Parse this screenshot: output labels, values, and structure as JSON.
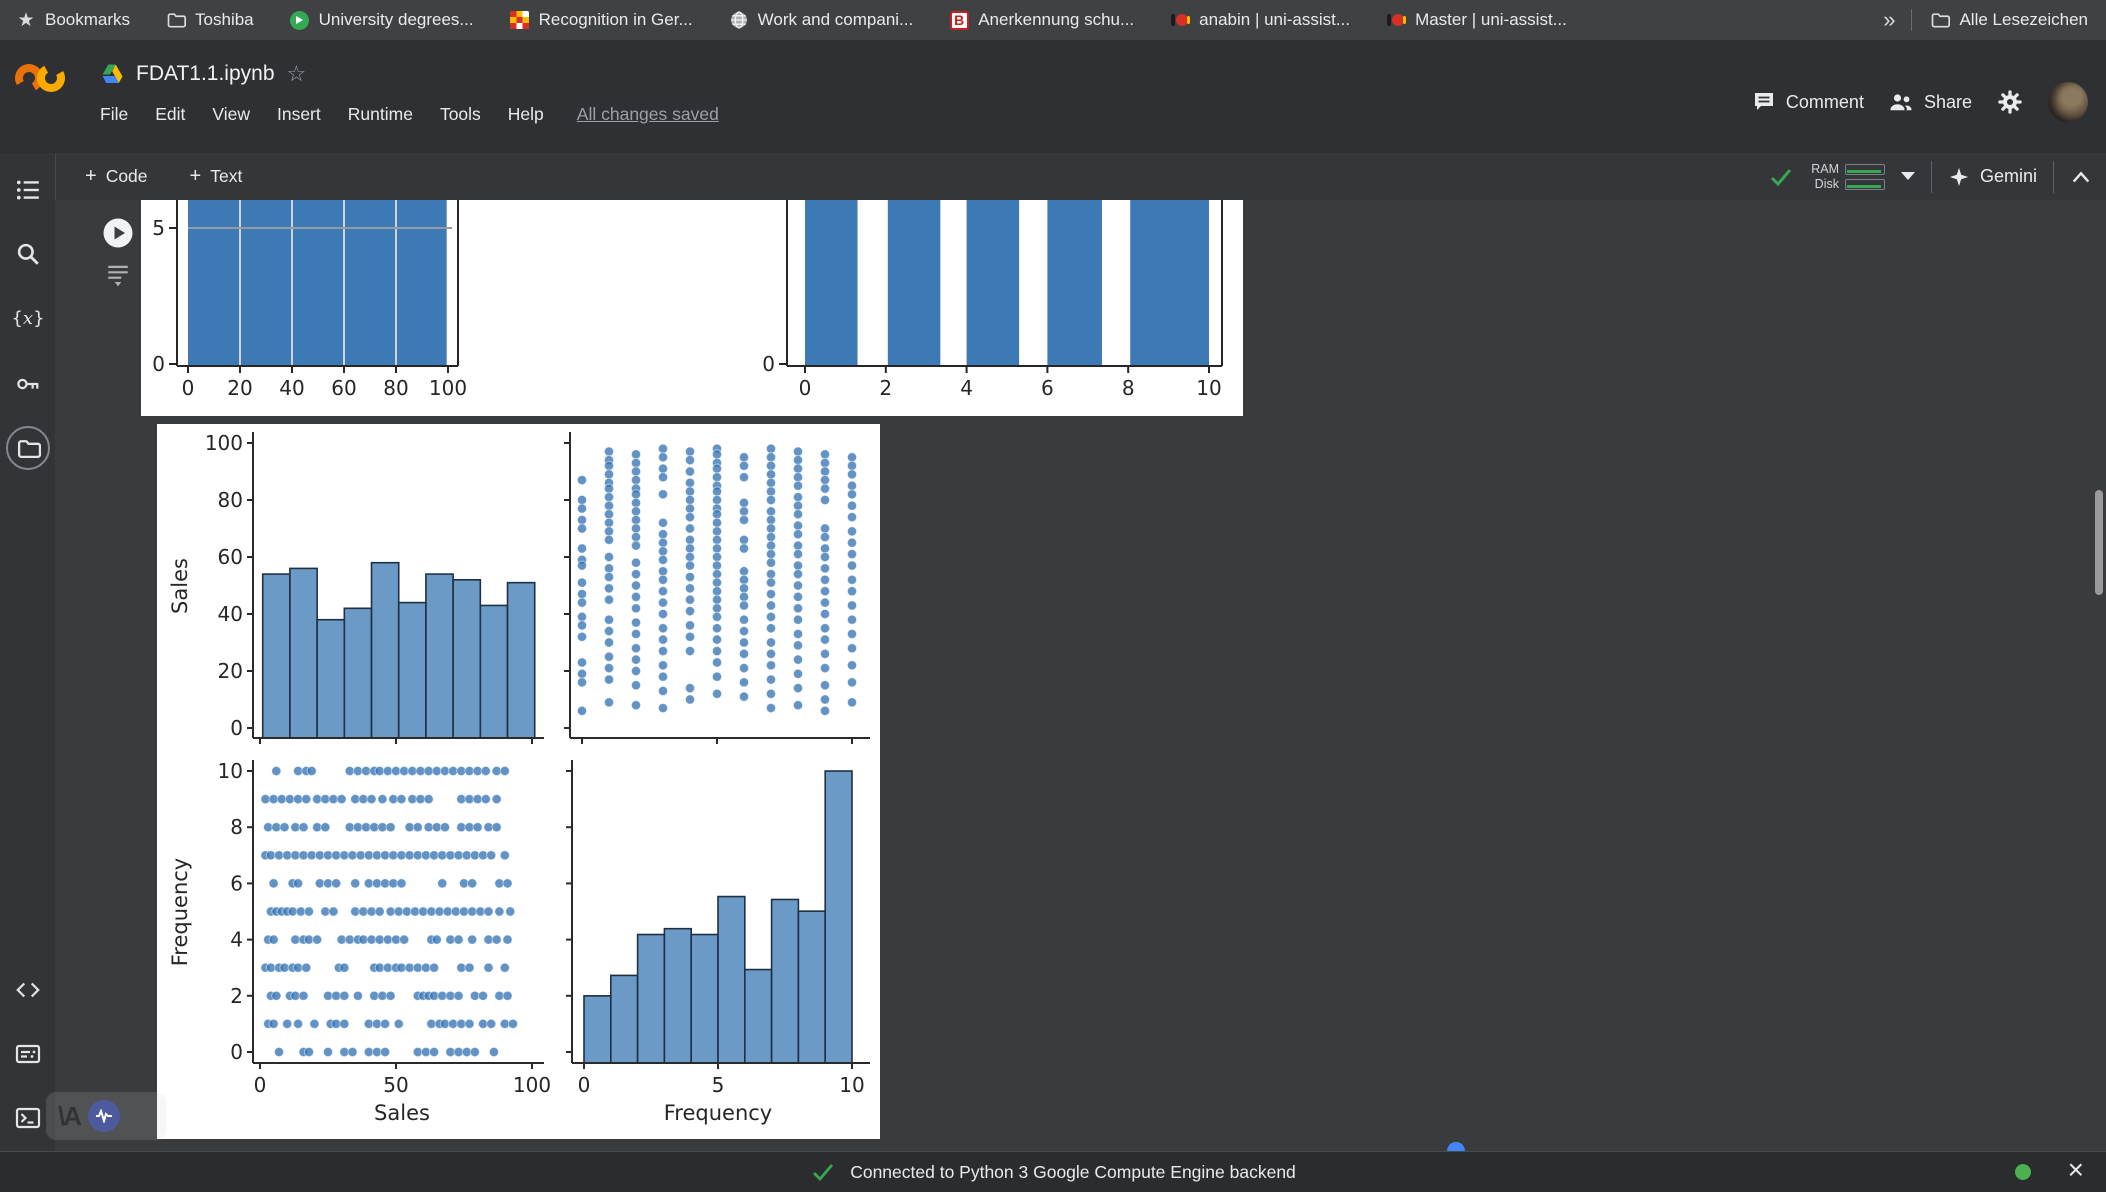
{
  "bookmarks_bar": {
    "items": [
      {
        "label": "Bookmarks",
        "icon": "star-icon"
      },
      {
        "label": "Toshiba",
        "icon": "folder-icon"
      },
      {
        "label": "University degrees...",
        "icon": "green-badge-icon"
      },
      {
        "label": "Recognition in Ger...",
        "icon": "pixel-grid-icon"
      },
      {
        "label": "Work and compani...",
        "icon": "globe-icon"
      },
      {
        "label": "Anerkennung schu...",
        "icon": "red-b-icon"
      },
      {
        "label": "anabin | uni-assist...",
        "icon": "german-flag-icon"
      },
      {
        "label": "Master | uni-assist...",
        "icon": "german-flag-icon"
      }
    ],
    "overflow": "»",
    "all_bookmarks_label": "Alle Lesezeichen"
  },
  "header": {
    "filename": "FDAT1.1.ipynb",
    "star": "☆",
    "menus": [
      {
        "label": "File"
      },
      {
        "label": "Edit"
      },
      {
        "label": "View"
      },
      {
        "label": "Insert"
      },
      {
        "label": "Runtime"
      },
      {
        "label": "Tools"
      },
      {
        "label": "Help"
      }
    ],
    "save_status": "All changes saved",
    "comment": "Comment",
    "share": "Share"
  },
  "toolbar": {
    "plus": "+",
    "add_code": "Code",
    "add_text": "Text",
    "ram": "RAM",
    "disk": "Disk",
    "gemini": "Gemini"
  },
  "statusbar": {
    "message": "Connected to Python 3 Google Compute Engine backend"
  },
  "icons": {
    "run-button": "play-circle",
    "sidebar": [
      "table-of-contents",
      "search",
      "variables {x}",
      "secrets-key",
      "files-folder-active",
      "code-snippets",
      "command-palette",
      "terminal"
    ],
    "header_right": [
      "comment-bubble",
      "share-people",
      "settings-gear",
      "avatar"
    ],
    "toolbar_right": [
      "green-check",
      "ram-disk-meters",
      "caret-down",
      "gemini-star",
      "collapse-chevron-up"
    ],
    "statusbar": [
      "green-check",
      "green-dot",
      "close-x"
    ]
  },
  "colors": {
    "hist_top_fill": "#3c79b5",
    "bar_fill": "#5b8fc0",
    "bar_edge": "#1f3044",
    "dot_fill": "#3b78b5",
    "accent_green": "#34a853",
    "figure_bg": "#ffffff"
  },
  "chart_data": [
    {
      "id": "top-output-figure",
      "type": "bar",
      "note": "two histograms, tops clipped by scroll",
      "subplots": [
        {
          "name": "uniform-histogram-0-100",
          "x_ticks": [
            0,
            20,
            40,
            60,
            80,
            100
          ],
          "y_ticks": [
            0,
            5
          ],
          "block": {
            "x0": 0,
            "x1": 99.5
          },
          "separators": [
            20,
            40,
            60,
            80
          ],
          "hline": 5,
          "clipped_top": true
        },
        {
          "name": "discrete-histogram-0-10",
          "x_ticks": [
            0,
            2,
            4,
            6,
            8,
            10
          ],
          "y_ticks": [
            0
          ],
          "bars": [
            [
              0,
              1.3
            ],
            [
              2.05,
              3.35
            ],
            [
              4.0,
              5.3
            ],
            [
              6.0,
              7.35
            ],
            [
              8.05,
              10.0
            ]
          ],
          "clipped_top": true
        }
      ]
    },
    {
      "id": "pairplot-figure",
      "type": "scatter-matrix",
      "vars": [
        "Sales",
        "Frequency"
      ],
      "sales_hist": {
        "type": "bar",
        "ylabel": "Sales",
        "y_ticks": [
          0,
          20,
          40,
          60,
          80,
          100
        ],
        "bin_start": 1,
        "bin_width": 10,
        "values": [
          54,
          56,
          38,
          42,
          58,
          44,
          54,
          52,
          43,
          51
        ]
      },
      "freq_sales_scatter": {
        "type": "scatter",
        "x_var": "Frequency",
        "y_var": "Sales",
        "columns": [
          [
            87,
            80,
            77,
            73,
            70,
            63,
            59,
            57,
            51,
            47,
            44,
            39,
            36,
            32,
            23,
            19,
            16,
            6
          ],
          [
            97,
            94,
            92,
            89,
            86,
            84,
            81,
            78,
            75,
            72,
            69,
            66,
            60,
            56,
            53,
            49,
            45,
            38,
            34,
            30,
            25,
            21,
            17,
            9
          ],
          [
            96,
            93,
            90,
            87,
            84,
            82,
            79,
            76,
            73,
            70,
            67,
            64,
            58,
            54,
            50,
            46,
            42,
            37,
            33,
            28,
            24,
            20,
            15,
            8
          ],
          [
            98,
            95,
            91,
            88,
            82,
            72,
            68,
            65,
            62,
            59,
            55,
            52,
            48,
            44,
            40,
            35,
            31,
            27,
            22,
            18,
            13,
            7
          ],
          [
            97,
            94,
            90,
            86,
            83,
            80,
            77,
            74,
            70,
            66,
            63,
            60,
            57,
            53,
            49,
            45,
            41,
            36,
            32,
            27,
            14,
            10
          ],
          [
            98,
            96,
            93,
            91,
            88,
            85,
            83,
            80,
            77,
            75,
            72,
            69,
            66,
            63,
            60,
            57,
            54,
            51,
            48,
            45,
            42,
            39,
            35,
            31,
            27,
            23,
            18,
            12
          ],
          [
            95,
            92,
            88,
            79,
            76,
            73,
            66,
            63,
            55,
            52,
            49,
            46,
            43,
            38,
            34,
            30,
            26,
            21,
            16,
            11
          ],
          [
            98,
            95,
            92,
            89,
            86,
            83,
            80,
            76,
            73,
            70,
            67,
            64,
            61,
            58,
            54,
            51,
            47,
            43,
            39,
            35,
            30,
            26,
            22,
            17,
            12,
            7
          ],
          [
            97,
            94,
            91,
            88,
            85,
            81,
            78,
            75,
            71,
            68,
            64,
            61,
            57,
            54,
            50,
            46,
            42,
            38,
            33,
            29,
            24,
            19,
            14,
            8
          ],
          [
            96,
            93,
            90,
            87,
            84,
            80,
            70,
            67,
            63,
            60,
            56,
            52,
            48,
            44,
            40,
            35,
            31,
            26,
            21,
            15,
            10,
            6
          ],
          [
            95,
            92,
            89,
            85,
            82,
            78,
            74,
            69,
            65,
            61,
            57,
            52,
            48,
            43,
            38,
            33,
            28,
            22,
            16,
            9
          ]
        ]
      },
      "sales_freq_scatter": {
        "type": "scatter",
        "x_var": "Sales",
        "y_var": "Frequency",
        "xlabel": "Sales",
        "ylabel": "Frequency",
        "x_ticks": [
          0,
          50,
          100
        ],
        "y_ticks": [
          0,
          2,
          4,
          6,
          8,
          10
        ],
        "rows": [
          [
            7,
            16,
            18,
            25,
            31,
            34,
            40,
            43,
            46,
            58,
            61,
            64,
            70,
            73,
            76,
            79,
            86
          ],
          [
            3,
            5,
            10,
            14,
            20,
            26,
            28,
            31,
            40,
            43,
            46,
            51,
            63,
            66,
            68,
            71,
            74,
            77,
            82,
            85,
            90,
            93
          ],
          [
            4,
            6,
            11,
            13,
            16,
            25,
            28,
            31,
            36,
            42,
            45,
            48,
            58,
            60,
            62,
            64,
            67,
            70,
            73,
            79,
            82,
            88,
            91
          ],
          [
            2,
            4,
            7,
            9,
            12,
            14,
            17,
            29,
            31,
            42,
            44,
            47,
            50,
            52,
            55,
            58,
            61,
            64,
            74,
            77,
            84,
            90
          ],
          [
            3,
            5,
            13,
            16,
            18,
            21,
            30,
            33,
            36,
            38,
            41,
            44,
            47,
            50,
            53,
            63,
            65,
            70,
            73,
            78,
            84,
            87,
            91
          ],
          [
            4,
            6,
            8,
            10,
            12,
            15,
            18,
            24,
            27,
            35,
            38,
            41,
            44,
            48,
            51,
            54,
            57,
            60,
            63,
            66,
            69,
            72,
            75,
            78,
            81,
            84,
            88,
            92
          ],
          [
            5,
            12,
            14,
            22,
            25,
            28,
            35,
            40,
            43,
            46,
            49,
            52,
            67,
            75,
            78,
            88,
            91
          ],
          [
            2,
            4,
            7,
            10,
            13,
            16,
            19,
            22,
            25,
            28,
            31,
            34,
            37,
            40,
            43,
            46,
            49,
            52,
            55,
            58,
            61,
            64,
            67,
            70,
            73,
            76,
            79,
            82,
            85,
            90
          ],
          [
            3,
            6,
            9,
            13,
            16,
            21,
            24,
            33,
            36,
            39,
            42,
            45,
            48,
            55,
            58,
            62,
            65,
            68,
            74,
            77,
            80,
            84,
            87
          ],
          [
            2,
            5,
            8,
            11,
            14,
            17,
            21,
            24,
            27,
            30,
            35,
            38,
            41,
            45,
            49,
            52,
            56,
            59,
            62,
            74,
            77,
            80,
            83,
            87
          ],
          [
            6,
            14,
            17,
            19,
            33,
            36,
            39,
            42,
            44,
            47,
            50,
            53,
            56,
            59,
            62,
            65,
            68,
            71,
            74,
            77,
            80,
            83,
            87,
            90
          ]
        ]
      },
      "freq_hist": {
        "type": "bar",
        "xlabel": "Frequency",
        "x_ticks": [
          0,
          5,
          10
        ],
        "bin_start": 0,
        "bin_width": 1,
        "values": [
          2.3,
          3.0,
          4.4,
          4.6,
          4.4,
          5.7,
          3.2,
          5.6,
          5.2,
          10
        ]
      }
    }
  ]
}
